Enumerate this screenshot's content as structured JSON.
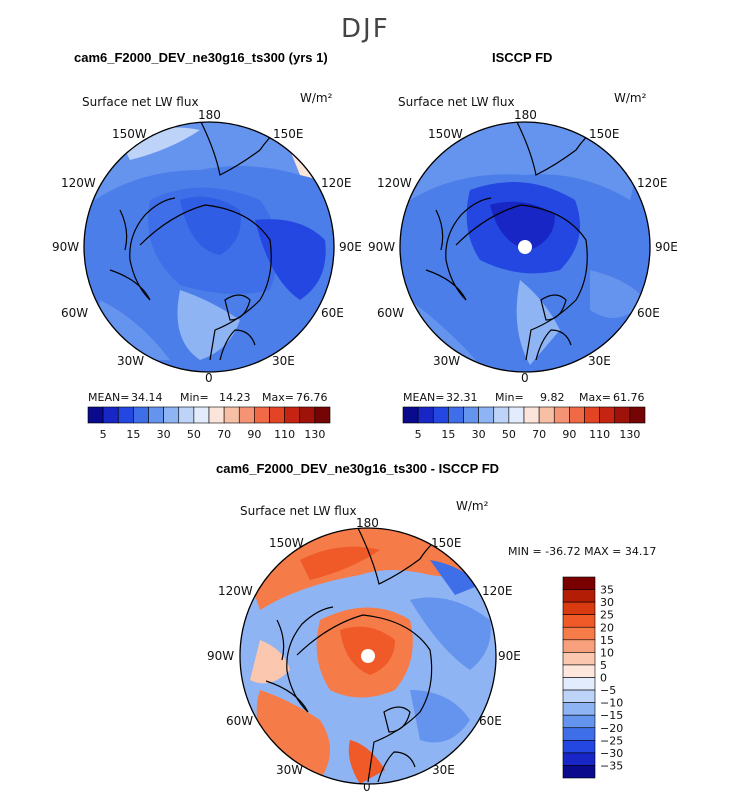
{
  "season": "DJF",
  "panels": [
    {
      "title": "cam6_F2000_DEV_ne30g16_ts300 (yrs 1)",
      "variable": "Surface net LW flux",
      "units": "W/m²",
      "stats": {
        "mean_label": "MEAN=",
        "mean": "34.14",
        "min_label": "Min=",
        "min": "14.23",
        "max_label": "Max=",
        "max": "76.76"
      },
      "colorbar_ticks": [
        "5",
        "15",
        "30",
        "50",
        "70",
        "90",
        "110",
        "130"
      ]
    },
    {
      "title": "ISCCP FD",
      "variable": "Surface net LW flux",
      "units": "W/m²",
      "stats": {
        "mean_label": "MEAN=",
        "mean": "32.31",
        "min_label": "Min=",
        "min": "9.82",
        "max_label": "Max=",
        "max": "61.76"
      },
      "colorbar_ticks": [
        "5",
        "15",
        "30",
        "50",
        "70",
        "90",
        "110",
        "130"
      ]
    },
    {
      "title": "cam6_F2000_DEV_ne30g16_ts300 - ISCCP FD",
      "variable": "Surface net LW flux",
      "units": "W/m²",
      "minmax": "MIN = -36.72 MAX =  34.17",
      "colorbar_ticks": [
        "35",
        "30",
        "25",
        "20",
        "15",
        "10",
        "5",
        "0",
        "−5",
        "−10",
        "−15",
        "−20",
        "−25",
        "−30",
        "−35"
      ]
    }
  ],
  "longitude_labels": {
    "top": "180",
    "top_left": "150W",
    "top_right": "150E",
    "upper_left": "120W",
    "upper_right": "120E",
    "left": "90W",
    "right": "90E",
    "lower_left": "60W",
    "lower_right": "60E",
    "bottom_left": "30W",
    "bottom_right": "30E",
    "bottom": "0"
  },
  "colors": {
    "flux_scale": [
      "#0a0a8c",
      "#1726c4",
      "#2347e0",
      "#3f6fe8",
      "#6594ee",
      "#8fb4f3",
      "#bdd3f8",
      "#e3ecfc",
      "#fbe4d9",
      "#f7bfa5",
      "#f59475",
      "#f06a48",
      "#e34424",
      "#c62412",
      "#9e1209",
      "#750404"
    ],
    "diff_scale": [
      "#7a0000",
      "#b31d06",
      "#d93a10",
      "#ef5a28",
      "#f57b48",
      "#f8a07b",
      "#fbc7ae",
      "#fde6dc",
      "#e3ecfc",
      "#bdd3f8",
      "#8fb4f3",
      "#6594ee",
      "#3f6fe8",
      "#2347e0",
      "#1726c4",
      "#0a0a8c"
    ]
  }
}
